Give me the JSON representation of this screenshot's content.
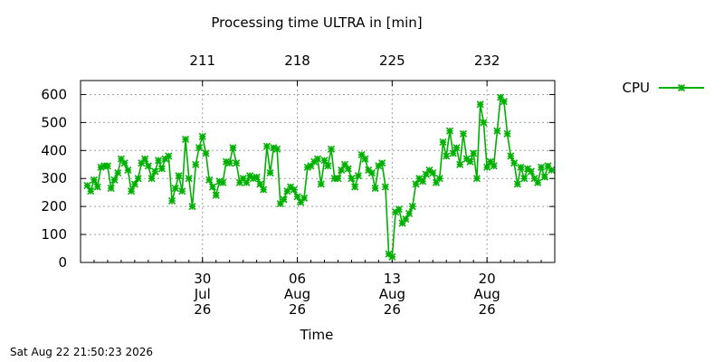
{
  "chart_data": {
    "type": "line",
    "title": "Processing time ULTRA in [min]",
    "xlabel": "Time",
    "ylabel": "",
    "ylim": [
      0,
      650
    ],
    "yticks": [
      0,
      100,
      200,
      300,
      400,
      500,
      600
    ],
    "xlim": [
      "2026-07-21",
      "2026-08-25"
    ],
    "grid": true,
    "legend_position": "top-right",
    "x_ticks_bottom": [
      {
        "date": "2026-07-30",
        "day": "30",
        "month": "Jul",
        "year": "26"
      },
      {
        "date": "2026-08-06",
        "day": "06",
        "month": "Aug",
        "year": "26"
      },
      {
        "date": "2026-08-13",
        "day": "13",
        "month": "Aug",
        "year": "26"
      },
      {
        "date": "2026-08-20",
        "day": "20",
        "month": "Aug",
        "year": "26"
      }
    ],
    "x_ticks_top": [
      {
        "date": "2026-07-30",
        "label": "211"
      },
      {
        "date": "2026-08-06",
        "label": "218"
      },
      {
        "date": "2026-08-13",
        "label": "225"
      },
      {
        "date": "2026-08-20",
        "label": "232"
      }
    ],
    "series": [
      {
        "name": "CPU",
        "color": "#00b000",
        "marker": "x-star",
        "points": [
          [
            "2026-07-21 12:00",
            275
          ],
          [
            "2026-07-21 18:00",
            255
          ],
          [
            "2026-07-22 00:00",
            295
          ],
          [
            "2026-07-22 06:00",
            270
          ],
          [
            "2026-07-22 12:00",
            340
          ],
          [
            "2026-07-22 18:00",
            345
          ],
          [
            "2026-07-23 00:00",
            345
          ],
          [
            "2026-07-23 06:00",
            265
          ],
          [
            "2026-07-23 12:00",
            295
          ],
          [
            "2026-07-23 18:00",
            320
          ],
          [
            "2026-07-24 00:00",
            370
          ],
          [
            "2026-07-24 06:00",
            355
          ],
          [
            "2026-07-24 12:00",
            330
          ],
          [
            "2026-07-24 18:00",
            255
          ],
          [
            "2026-07-25 00:00",
            280
          ],
          [
            "2026-07-25 06:00",
            300
          ],
          [
            "2026-07-25 12:00",
            355
          ],
          [
            "2026-07-25 18:00",
            370
          ],
          [
            "2026-07-26 00:00",
            345
          ],
          [
            "2026-07-26 06:00",
            300
          ],
          [
            "2026-07-26 12:00",
            325
          ],
          [
            "2026-07-26 18:00",
            365
          ],
          [
            "2026-07-27 00:00",
            335
          ],
          [
            "2026-07-27 06:00",
            370
          ],
          [
            "2026-07-27 12:00",
            380
          ],
          [
            "2026-07-27 18:00",
            220
          ],
          [
            "2026-07-28 00:00",
            265
          ],
          [
            "2026-07-28 06:00",
            310
          ],
          [
            "2026-07-28 12:00",
            255
          ],
          [
            "2026-07-28 18:00",
            440
          ],
          [
            "2026-07-29 00:00",
            300
          ],
          [
            "2026-07-29 06:00",
            200
          ],
          [
            "2026-07-29 12:00",
            350
          ],
          [
            "2026-07-29 18:00",
            410
          ],
          [
            "2026-07-30 00:00",
            450
          ],
          [
            "2026-07-30 06:00",
            390
          ],
          [
            "2026-07-30 12:00",
            295
          ],
          [
            "2026-07-30 18:00",
            270
          ],
          [
            "2026-07-31 00:00",
            240
          ],
          [
            "2026-07-31 06:00",
            290
          ],
          [
            "2026-07-31 12:00",
            285
          ],
          [
            "2026-07-31 18:00",
            360
          ],
          [
            "2026-08-01 00:00",
            355
          ],
          [
            "2026-08-01 06:00",
            410
          ],
          [
            "2026-08-01 12:00",
            355
          ],
          [
            "2026-08-01 18:00",
            285
          ],
          [
            "2026-08-02 00:00",
            300
          ],
          [
            "2026-08-02 06:00",
            285
          ],
          [
            "2026-08-02 12:00",
            310
          ],
          [
            "2026-08-02 18:00",
            300
          ],
          [
            "2026-08-03 00:00",
            305
          ],
          [
            "2026-08-03 06:00",
            280
          ],
          [
            "2026-08-03 12:00",
            260
          ],
          [
            "2026-08-03 18:00",
            415
          ],
          [
            "2026-08-04 00:00",
            320
          ],
          [
            "2026-08-04 06:00",
            410
          ],
          [
            "2026-08-04 12:00",
            405
          ],
          [
            "2026-08-04 18:00",
            210
          ],
          [
            "2026-08-05 00:00",
            225
          ],
          [
            "2026-08-05 06:00",
            255
          ],
          [
            "2026-08-05 12:00",
            270
          ],
          [
            "2026-08-05 18:00",
            260
          ],
          [
            "2026-08-06 00:00",
            235
          ],
          [
            "2026-08-06 06:00",
            215
          ],
          [
            "2026-08-06 12:00",
            230
          ],
          [
            "2026-08-06 18:00",
            340
          ],
          [
            "2026-08-07 00:00",
            345
          ],
          [
            "2026-08-07 06:00",
            360
          ],
          [
            "2026-08-07 12:00",
            370
          ],
          [
            "2026-08-07 18:00",
            280
          ],
          [
            "2026-08-08 00:00",
            365
          ],
          [
            "2026-08-08 06:00",
            345
          ],
          [
            "2026-08-08 12:00",
            405
          ],
          [
            "2026-08-08 18:00",
            300
          ],
          [
            "2026-08-09 00:00",
            300
          ],
          [
            "2026-08-09 06:00",
            330
          ],
          [
            "2026-08-09 12:00",
            350
          ],
          [
            "2026-08-09 18:00",
            335
          ],
          [
            "2026-08-10 00:00",
            300
          ],
          [
            "2026-08-10 06:00",
            270
          ],
          [
            "2026-08-10 12:00",
            310
          ],
          [
            "2026-08-10 18:00",
            385
          ],
          [
            "2026-08-11 00:00",
            370
          ],
          [
            "2026-08-11 06:00",
            330
          ],
          [
            "2026-08-11 12:00",
            320
          ],
          [
            "2026-08-11 18:00",
            265
          ],
          [
            "2026-08-12 00:00",
            345
          ],
          [
            "2026-08-12 06:00",
            355
          ],
          [
            "2026-08-12 12:00",
            270
          ],
          [
            "2026-08-12 18:00",
            30
          ],
          [
            "2026-08-13 00:00",
            20
          ],
          [
            "2026-08-13 06:00",
            180
          ],
          [
            "2026-08-13 12:00",
            190
          ],
          [
            "2026-08-13 18:00",
            140
          ],
          [
            "2026-08-14 00:00",
            155
          ],
          [
            "2026-08-14 06:00",
            175
          ],
          [
            "2026-08-14 12:00",
            200
          ],
          [
            "2026-08-14 18:00",
            280
          ],
          [
            "2026-08-15 00:00",
            300
          ],
          [
            "2026-08-15 06:00",
            290
          ],
          [
            "2026-08-15 12:00",
            315
          ],
          [
            "2026-08-15 18:00",
            330
          ],
          [
            "2026-08-16 00:00",
            320
          ],
          [
            "2026-08-16 06:00",
            285
          ],
          [
            "2026-08-16 12:00",
            300
          ],
          [
            "2026-08-16 18:00",
            430
          ],
          [
            "2026-08-17 00:00",
            380
          ],
          [
            "2026-08-17 06:00",
            470
          ],
          [
            "2026-08-17 12:00",
            390
          ],
          [
            "2026-08-17 18:00",
            410
          ],
          [
            "2026-08-18 00:00",
            350
          ],
          [
            "2026-08-18 06:00",
            460
          ],
          [
            "2026-08-18 12:00",
            370
          ],
          [
            "2026-08-18 18:00",
            360
          ],
          [
            "2026-08-19 00:00",
            390
          ],
          [
            "2026-08-19 06:00",
            300
          ],
          [
            "2026-08-19 12:00",
            565
          ],
          [
            "2026-08-19 18:00",
            500
          ],
          [
            "2026-08-20 00:00",
            340
          ],
          [
            "2026-08-20 06:00",
            360
          ],
          [
            "2026-08-20 12:00",
            345
          ],
          [
            "2026-08-20 18:00",
            470
          ],
          [
            "2026-08-21 00:00",
            590
          ],
          [
            "2026-08-21 06:00",
            575
          ],
          [
            "2026-08-21 12:00",
            460
          ],
          [
            "2026-08-21 18:00",
            380
          ],
          [
            "2026-08-22 00:00",
            355
          ],
          [
            "2026-08-22 06:00",
            280
          ],
          [
            "2026-08-22 12:00",
            340
          ],
          [
            "2026-08-22 18:00",
            300
          ],
          [
            "2026-08-23 00:00",
            335
          ],
          [
            "2026-08-23 06:00",
            325
          ],
          [
            "2026-08-23 12:00",
            300
          ],
          [
            "2026-08-23 18:00",
            285
          ],
          [
            "2026-08-24 00:00",
            340
          ],
          [
            "2026-08-24 06:00",
            305
          ],
          [
            "2026-08-24 12:00",
            345
          ],
          [
            "2026-08-24 18:00",
            330
          ]
        ]
      }
    ]
  },
  "timestamp": "Sat Aug 22 21:50:23 2026"
}
